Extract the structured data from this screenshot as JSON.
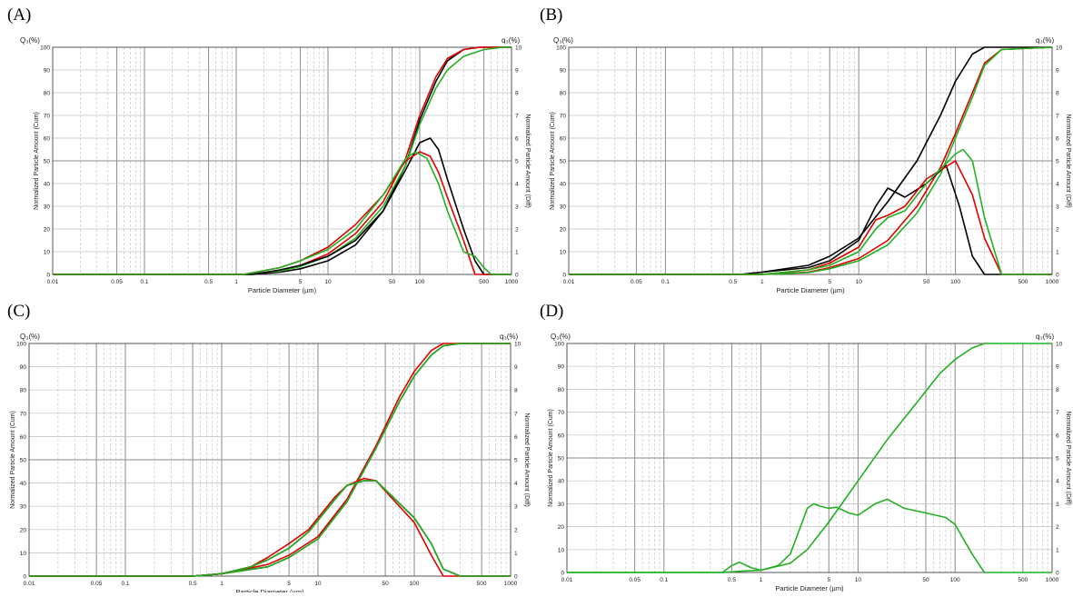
{
  "chart_data": [
    {
      "type": "line",
      "panel_label": "(A)",
      "left_axis_title": "Q₃(%)",
      "right_axis_title": "q₃(%)",
      "ylabel": "Normalized Particle Amount (Cum)",
      "ylabel_right": "Normalized Particle Amount (Diff)",
      "xlabel": "Particle Diameter (µm)",
      "x_scale": "log",
      "xlim": [
        0.01,
        1000
      ],
      "ylim": [
        0,
        100
      ],
      "ylim_right": [
        0,
        10
      ],
      "x_tick_labels": [
        "0.01",
        "0.05",
        "0.1",
        "0.5",
        "1",
        "5",
        "10",
        "50",
        "100",
        "500",
        "1000"
      ],
      "y_tick_labels": [
        "0",
        "10",
        "20",
        "30",
        "40",
        "50",
        "60",
        "70",
        "80",
        "90",
        "100"
      ],
      "y_right_tick_labels": [
        "0",
        "1",
        "2",
        "3",
        "4",
        "5",
        "6",
        "7",
        "8",
        "9",
        "10"
      ],
      "grid": true,
      "series": [
        {
          "color": "#000000",
          "axis": "left",
          "x": [
            0.01,
            1.5,
            3,
            5,
            10,
            20,
            40,
            70,
            100,
            150,
            200,
            300,
            450,
            1000
          ],
          "y": [
            0,
            0,
            1,
            2.5,
            6,
            13,
            28,
            48,
            68,
            85,
            94,
            99,
            100,
            100
          ]
        },
        {
          "color": "#e00000",
          "axis": "left",
          "x": [
            0.01,
            1.2,
            3,
            5,
            10,
            20,
            40,
            70,
            100,
            150,
            200,
            300,
            450,
            1000
          ],
          "y": [
            0,
            0,
            1.5,
            4,
            9,
            18,
            32,
            51,
            70,
            87,
            95,
            99,
            100,
            100
          ]
        },
        {
          "color": "#22b022",
          "axis": "left",
          "x": [
            0.01,
            1.2,
            3,
            5,
            10,
            20,
            40,
            70,
            100,
            150,
            200,
            300,
            500,
            800,
            1000
          ],
          "y": [
            0,
            0,
            1.5,
            3.5,
            8,
            16,
            30,
            48,
            66,
            82,
            90,
            96,
            99,
            100,
            100
          ]
        },
        {
          "color": "#000000",
          "axis": "right",
          "x": [
            0.01,
            1.5,
            3,
            5,
            10,
            20,
            40,
            70,
            100,
            130,
            160,
            200,
            300,
            400,
            500,
            1000
          ],
          "y": [
            0,
            0,
            0.2,
            0.4,
            0.8,
            1.5,
            2.8,
            4.6,
            5.8,
            6.0,
            5.5,
            4.2,
            2.0,
            0.6,
            0,
            0
          ]
        },
        {
          "color": "#e00000",
          "axis": "right",
          "x": [
            0.01,
            1.2,
            3,
            5,
            10,
            20,
            40,
            70,
            100,
            130,
            160,
            200,
            300,
            400,
            1000
          ],
          "y": [
            0,
            0,
            0.3,
            0.6,
            1.2,
            2.2,
            3.5,
            5.0,
            5.4,
            5.2,
            4.5,
            3.4,
            1.5,
            0,
            0
          ]
        },
        {
          "color": "#22b022",
          "axis": "right",
          "x": [
            0.01,
            1.2,
            3,
            5,
            10,
            20,
            40,
            70,
            90,
            120,
            160,
            200,
            300,
            400,
            500,
            600,
            1000
          ],
          "y": [
            0,
            0,
            0.3,
            0.6,
            1.1,
            2.0,
            3.5,
            5.1,
            5.4,
            5.1,
            4.0,
            2.8,
            1.0,
            0.8,
            0.3,
            0,
            0
          ]
        }
      ]
    },
    {
      "type": "line",
      "panel_label": "(B)",
      "left_axis_title": "Q₃(%)",
      "right_axis_title": "q₃(%)",
      "ylabel": "Normalized Particle Amount (Cum)",
      "ylabel_right": "Normalized Particle Amount (Diff)",
      "xlabel": "Particle Diameter (µm)",
      "x_scale": "log",
      "xlim": [
        0.01,
        1000
      ],
      "ylim": [
        0,
        100
      ],
      "ylim_right": [
        0,
        10
      ],
      "x_tick_labels": [
        "0.01",
        "0.05",
        "0.1",
        "0.5",
        "1",
        "5",
        "10",
        "50",
        "100",
        "500",
        "1000"
      ],
      "y_tick_labels": [
        "0",
        "10",
        "20",
        "30",
        "40",
        "50",
        "60",
        "70",
        "80",
        "90",
        "100"
      ],
      "y_right_tick_labels": [
        "0",
        "1",
        "2",
        "3",
        "4",
        "5",
        "6",
        "7",
        "8",
        "9",
        "10"
      ],
      "grid": true,
      "series": [
        {
          "color": "#000000",
          "axis": "left",
          "x": [
            0.01,
            0.6,
            1,
            3,
            5,
            10,
            20,
            40,
            70,
            100,
            150,
            200,
            1000
          ],
          "y": [
            0,
            0,
            1,
            4,
            8,
            16,
            32,
            50,
            70,
            85,
            97,
            100,
            100
          ]
        },
        {
          "color": "#e00000",
          "axis": "left",
          "x": [
            0.01,
            1,
            3,
            5,
            10,
            20,
            40,
            70,
            100,
            150,
            200,
            300,
            1000
          ],
          "y": [
            0,
            0,
            1,
            3,
            7,
            15,
            30,
            47,
            62,
            80,
            93,
            99,
            100
          ]
        },
        {
          "color": "#22b022",
          "axis": "left",
          "x": [
            0.01,
            1,
            3,
            5,
            10,
            20,
            40,
            70,
            100,
            150,
            200,
            300,
            1000
          ],
          "y": [
            0,
            0,
            0.8,
            2.5,
            6,
            13,
            27,
            44,
            60,
            78,
            92,
            99,
            100
          ]
        },
        {
          "color": "#000000",
          "axis": "right",
          "x": [
            0.01,
            0.6,
            1,
            3,
            5,
            10,
            15,
            20,
            30,
            50,
            80,
            110,
            150,
            200,
            1000
          ],
          "y": [
            0,
            0,
            0.1,
            0.3,
            0.6,
            1.5,
            3.0,
            3.8,
            3.4,
            4.0,
            4.8,
            3.0,
            0.8,
            0,
            0
          ]
        },
        {
          "color": "#e00000",
          "axis": "right",
          "x": [
            0.01,
            1,
            3,
            5,
            10,
            15,
            20,
            30,
            50,
            100,
            150,
            200,
            300,
            1000
          ],
          "y": [
            0,
            0,
            0.2,
            0.5,
            1.2,
            2.4,
            2.6,
            3.0,
            4.2,
            5.0,
            3.5,
            1.6,
            0,
            0
          ]
        },
        {
          "color": "#22b022",
          "axis": "right",
          "x": [
            0.01,
            1,
            3,
            5,
            10,
            15,
            20,
            30,
            50,
            100,
            120,
            150,
            200,
            300,
            1000
          ],
          "y": [
            0,
            0,
            0.2,
            0.4,
            1.0,
            2.0,
            2.5,
            2.8,
            4.0,
            5.3,
            5.5,
            5.0,
            2.5,
            0,
            0
          ]
        }
      ]
    },
    {
      "type": "line",
      "panel_label": "(C)",
      "left_axis_title": "Q₃(%)",
      "right_axis_title": "q₃(%)",
      "ylabel": "Normalized Particle Amount (Cum)",
      "ylabel_right": "Normalized Particle Amount (Diff)",
      "xlabel": "Particle Diameter (µm)",
      "x_scale": "log",
      "xlim": [
        0.01,
        1000
      ],
      "ylim": [
        0,
        100
      ],
      "ylim_right": [
        0,
        10
      ],
      "x_tick_labels": [
        "0.01",
        "0.05",
        "0.1",
        "0.5",
        "1",
        "5",
        "10",
        "50",
        "100",
        "500",
        "1000"
      ],
      "y_tick_labels": [
        "0",
        "10",
        "20",
        "30",
        "40",
        "50",
        "60",
        "70",
        "80",
        "90",
        "100"
      ],
      "y_right_tick_labels": [
        "0",
        "1",
        "2",
        "3",
        "4",
        "5",
        "6",
        "7",
        "8",
        "9",
        "10"
      ],
      "grid": true,
      "series": [
        {
          "color": "#000000",
          "axis": "left",
          "x": [
            0.01,
            0.5,
            1,
            3,
            5,
            10,
            20,
            40,
            70,
            100,
            150,
            200,
            300,
            1000
          ],
          "y": [
            0,
            0,
            1,
            4,
            8,
            16,
            32,
            55,
            75,
            86,
            95,
            99,
            100,
            100
          ]
        },
        {
          "color": "#e00000",
          "axis": "left",
          "x": [
            0.01,
            0.5,
            1,
            3,
            5,
            10,
            20,
            40,
            70,
            100,
            150,
            200,
            300,
            1000
          ],
          "y": [
            0,
            0,
            1,
            5,
            9,
            17,
            33,
            56,
            77,
            88,
            97,
            100,
            100,
            100
          ]
        },
        {
          "color": "#22b022",
          "axis": "left",
          "x": [
            0.01,
            0.5,
            1,
            3,
            5,
            10,
            20,
            40,
            70,
            100,
            150,
            200,
            300,
            1000
          ],
          "y": [
            0,
            0,
            1,
            4,
            8,
            16,
            32,
            55,
            75,
            86,
            95,
            99,
            100,
            100
          ]
        },
        {
          "color": "#000000",
          "axis": "right",
          "x": [
            0.01,
            0.5,
            1,
            2,
            3,
            5,
            8,
            10,
            15,
            20,
            30,
            40,
            60,
            100,
            150,
            200,
            300,
            1000
          ],
          "y": [
            0,
            0,
            0.1,
            0.4,
            0.7,
            1.2,
            1.9,
            2.4,
            3.3,
            3.9,
            4.1,
            4.1,
            3.4,
            2.5,
            1.4,
            0.3,
            0,
            0
          ]
        },
        {
          "color": "#e00000",
          "axis": "right",
          "x": [
            0.01,
            0.5,
            1,
            2,
            3,
            5,
            8,
            10,
            15,
            20,
            30,
            40,
            60,
            100,
            150,
            200,
            300,
            1000
          ],
          "y": [
            0,
            0,
            0.1,
            0.4,
            0.8,
            1.4,
            2.0,
            2.5,
            3.4,
            3.9,
            4.2,
            4.1,
            3.3,
            2.3,
            0.9,
            0,
            0,
            0
          ]
        },
        {
          "color": "#22b022",
          "axis": "right",
          "x": [
            0.01,
            0.5,
            1,
            2,
            3,
            5,
            8,
            10,
            15,
            20,
            30,
            40,
            60,
            100,
            150,
            200,
            300,
            1000
          ],
          "y": [
            0,
            0,
            0.1,
            0.4,
            0.7,
            1.2,
            1.9,
            2.4,
            3.3,
            3.9,
            4.1,
            4.1,
            3.4,
            2.5,
            1.4,
            0.3,
            0,
            0
          ]
        }
      ]
    },
    {
      "type": "line",
      "panel_label": "(D)",
      "left_axis_title": "Q₃(%)",
      "right_axis_title": "q₃(%)",
      "ylabel": "Normalized Particle Amount (Cum)",
      "ylabel_right": "Normalized Particle Amount (Diff)",
      "xlabel": "Particle Diameter (µm)",
      "x_scale": "log",
      "xlim": [
        0.01,
        1000
      ],
      "ylim": [
        0,
        100
      ],
      "ylim_right": [
        0,
        10
      ],
      "x_tick_labels": [
        "0.01",
        "0.05",
        "0.1",
        "0.5",
        "1",
        "5",
        "10",
        "50",
        "100",
        "500",
        "1000"
      ],
      "y_tick_labels": [
        "0",
        "10",
        "20",
        "30",
        "40",
        "50",
        "60",
        "70",
        "80",
        "90",
        "100"
      ],
      "y_right_tick_labels": [
        "0",
        "1",
        "2",
        "3",
        "4",
        "5",
        "6",
        "7",
        "8",
        "9",
        "10"
      ],
      "grid": true,
      "series": [
        {
          "color": "#22b022",
          "axis": "left",
          "x": [
            0.01,
            0.4,
            0.6,
            1,
            2,
            3,
            5,
            10,
            20,
            40,
            70,
            100,
            150,
            200,
            250,
            1000
          ],
          "y": [
            0,
            0,
            0.5,
            1,
            4,
            10,
            22,
            40,
            58,
            74,
            87,
            93,
            98,
            100,
            100,
            100
          ]
        },
        {
          "color": "#22b022",
          "axis": "right",
          "x": [
            0.01,
            0.4,
            0.5,
            0.6,
            0.8,
            1,
            1.5,
            2,
            3,
            3.5,
            4,
            5,
            6,
            8,
            10,
            15,
            20,
            30,
            50,
            80,
            100,
            150,
            200,
            1000
          ],
          "y": [
            0,
            0,
            0.3,
            0.45,
            0.2,
            0.1,
            0.3,
            0.8,
            2.8,
            3.0,
            2.9,
            2.8,
            2.85,
            2.6,
            2.5,
            3.0,
            3.2,
            2.8,
            2.6,
            2.4,
            2.1,
            0.8,
            0,
            0
          ]
        }
      ]
    }
  ]
}
